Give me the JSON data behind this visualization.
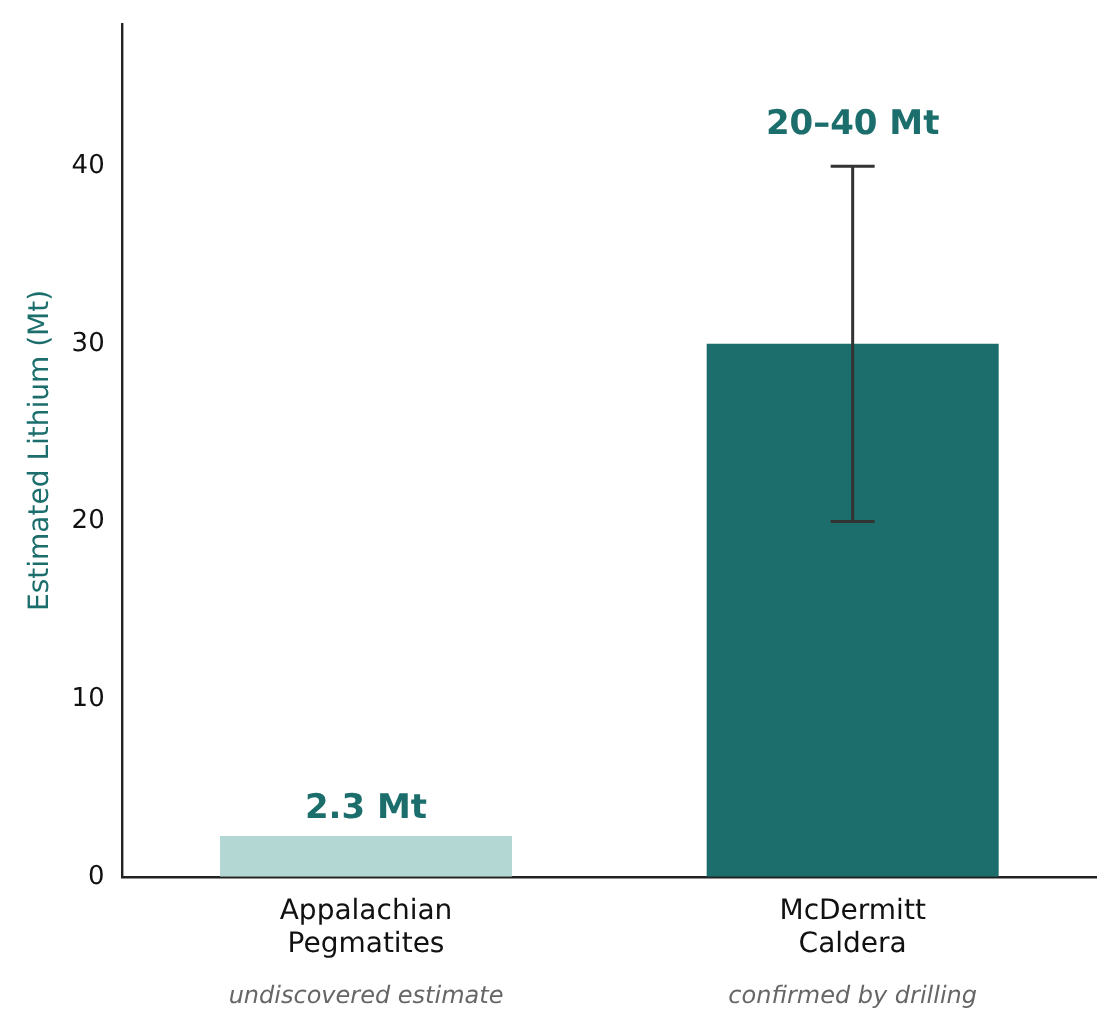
{
  "chart_data": {
    "type": "bar",
    "ylabel": "Estimated Lithium (Mt)",
    "categories": [
      "Appalachian Pegmatites",
      "McDermitt Caldera"
    ],
    "values": [
      2.3,
      30
    ],
    "colors": [
      "#b3d8d3",
      "#1c6e6c"
    ],
    "errors": [
      null,
      10
    ],
    "value_labels": [
      "2.3 Mt",
      null
    ],
    "ylim": [
      0,
      48
    ],
    "yticks": [
      0,
      10,
      20,
      30,
      40
    ],
    "grid": false,
    "legend": false,
    "annotations": [
      "undiscovered estimate",
      "confirmed by drilling",
      {
        "text": "20–40 Mt",
        "x": "McDermitt Caldera",
        "y": 40
      }
    ]
  }
}
